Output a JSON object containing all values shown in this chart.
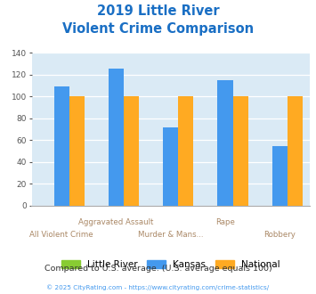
{
  "title_line1": "2019 Little River",
  "title_line2": "Violent Crime Comparison",
  "categories": [
    "All Violent Crime",
    "Aggravated Assault",
    "Murder & Mans...",
    "Rape",
    "Robbery"
  ],
  "top_labels": [
    "",
    "Aggravated Assault",
    "",
    "Rape",
    ""
  ],
  "bottom_labels": [
    "All Violent Crime",
    "",
    "Murder & Mans...",
    "",
    "Robbery"
  ],
  "little_river": [
    0,
    0,
    0,
    0,
    0
  ],
  "kansas": [
    109,
    126,
    72,
    115,
    55
  ],
  "national": [
    100,
    100,
    100,
    100,
    100
  ],
  "colors": {
    "little_river": "#88cc33",
    "kansas": "#4499ee",
    "national": "#ffaa22"
  },
  "ylim": [
    0,
    140
  ],
  "yticks": [
    0,
    20,
    40,
    60,
    80,
    100,
    120,
    140
  ],
  "background_color": "#ffffff",
  "plot_bg": "#daeaf5",
  "title_color": "#1a6fc4",
  "footer_text": "Compared to U.S. average. (U.S. average equals 100)",
  "footer_color": "#333333",
  "copyright_text": "© 2025 CityRating.com - https://www.cityrating.com/crime-statistics/",
  "copyright_color": "#4499ee",
  "legend_labels": [
    "Little River",
    "Kansas",
    "National"
  ],
  "label_color": "#aa8866",
  "bar_width": 0.28
}
